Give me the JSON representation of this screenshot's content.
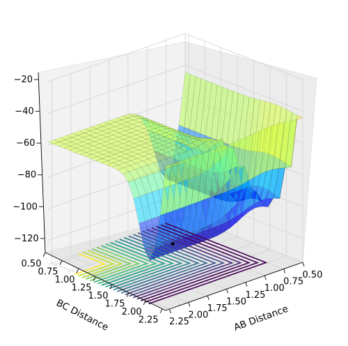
{
  "chart_data": {
    "type": "surface3d",
    "title": "",
    "xlabel": "AB Distance",
    "ylabel": "BC Distance",
    "zlabel": "",
    "x_ticks": [
      "0.50",
      "0.75",
      "1.00",
      "1.25",
      "1.50",
      "1.75",
      "2.00",
      "2.25"
    ],
    "y_ticks": [
      "0.50",
      "0.75",
      "1.00",
      "1.25",
      "1.50",
      "1.75",
      "2.00",
      "2.25"
    ],
    "z_ticks": [
      "−20",
      "−40",
      "−60",
      "−80",
      "−100",
      "−120"
    ],
    "xlim": [
      0.5,
      2.3
    ],
    "ylim": [
      0.5,
      2.3
    ],
    "zlim": [
      -135,
      -20
    ],
    "grid": true,
    "surface_colormap": "jet",
    "surface_alpha": 0.5,
    "projected_contours": {
      "colormap": "viridis",
      "levels": 20
    },
    "surface_z_range": [
      -110,
      -20
    ],
    "marker": {
      "x": 2.0,
      "y": 0.74,
      "z": -102
    }
  },
  "colors": {
    "pane": "#f2f2f2",
    "pane_edge": "#d9d9d9",
    "grid": "#d2d2d2",
    "marker": "#000000"
  }
}
